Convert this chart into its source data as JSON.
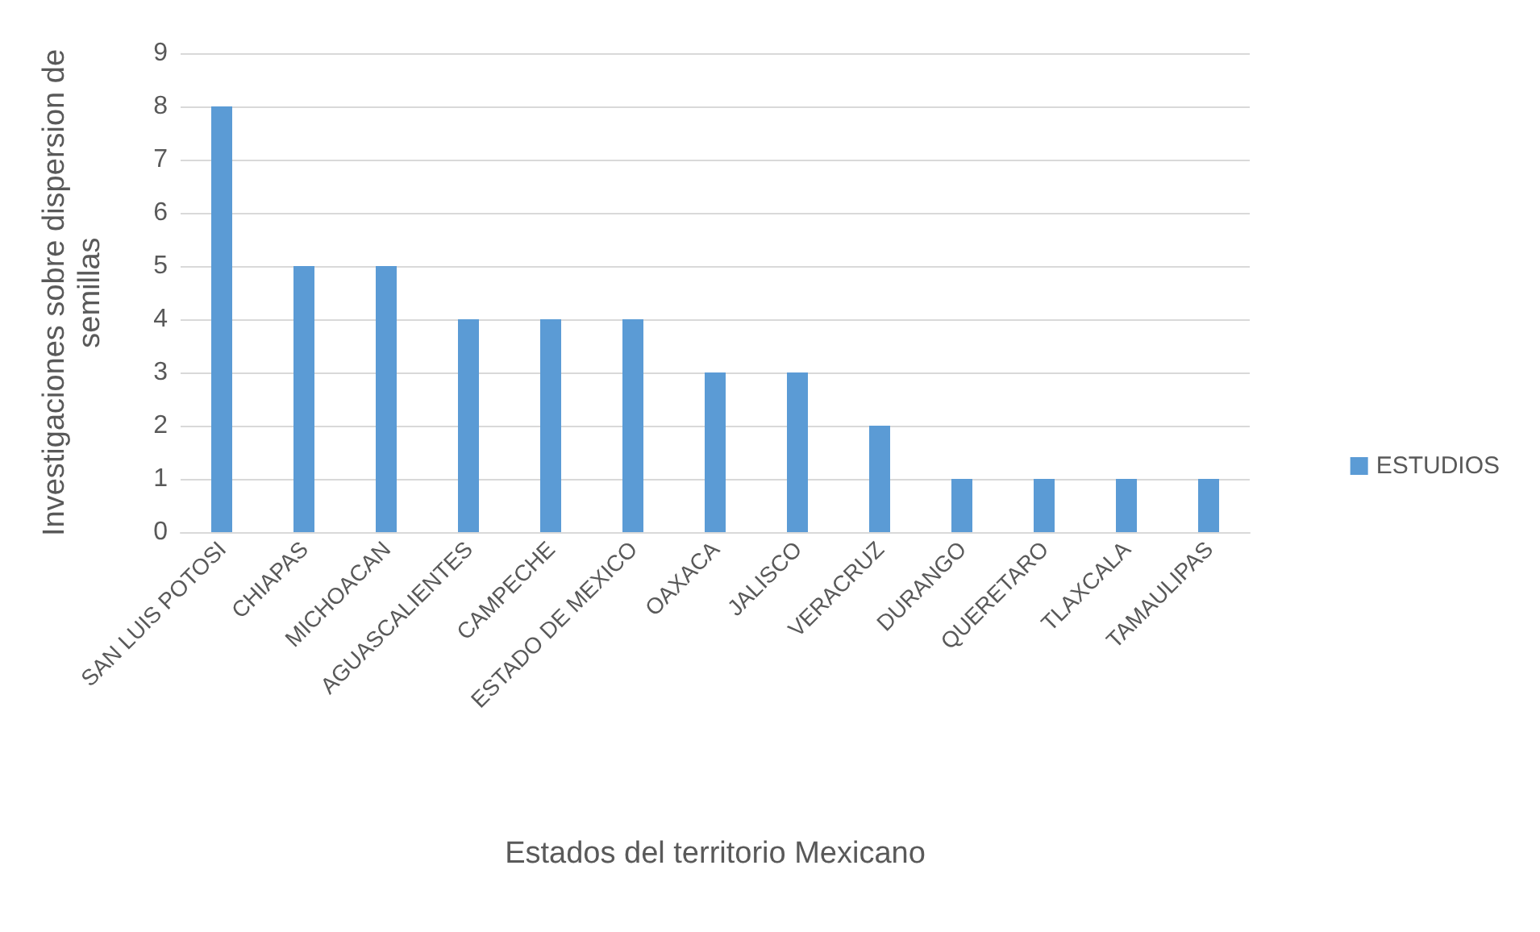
{
  "chart_data": {
    "type": "bar",
    "xlabel": "Estados del territorio Mexicano",
    "ylabel": "Investigaciones sobre dispersion de semillas",
    "categories": [
      "SAN LUIS POTOSI",
      "CHIAPAS",
      "MICHOACAN",
      "AGUASCALIENTES",
      "CAMPECHE",
      "ESTADO DE MEXICO",
      "OAXACA",
      "JALISCO",
      "VERACRUZ",
      "DURANGO",
      "QUERETARO",
      "TLAXCALA",
      "TAMAULIPAS"
    ],
    "series": [
      {
        "name": "ESTUDIOS",
        "color": "#5b9bd5",
        "values": [
          8,
          5,
          5,
          4,
          4,
          4,
          3,
          3,
          2,
          1,
          1,
          1,
          1
        ]
      }
    ],
    "ylim": [
      0,
      9
    ],
    "yticks": [
      0,
      1,
      2,
      3,
      4,
      5,
      6,
      7,
      8,
      9
    ],
    "grid": "y",
    "legend": "right"
  }
}
